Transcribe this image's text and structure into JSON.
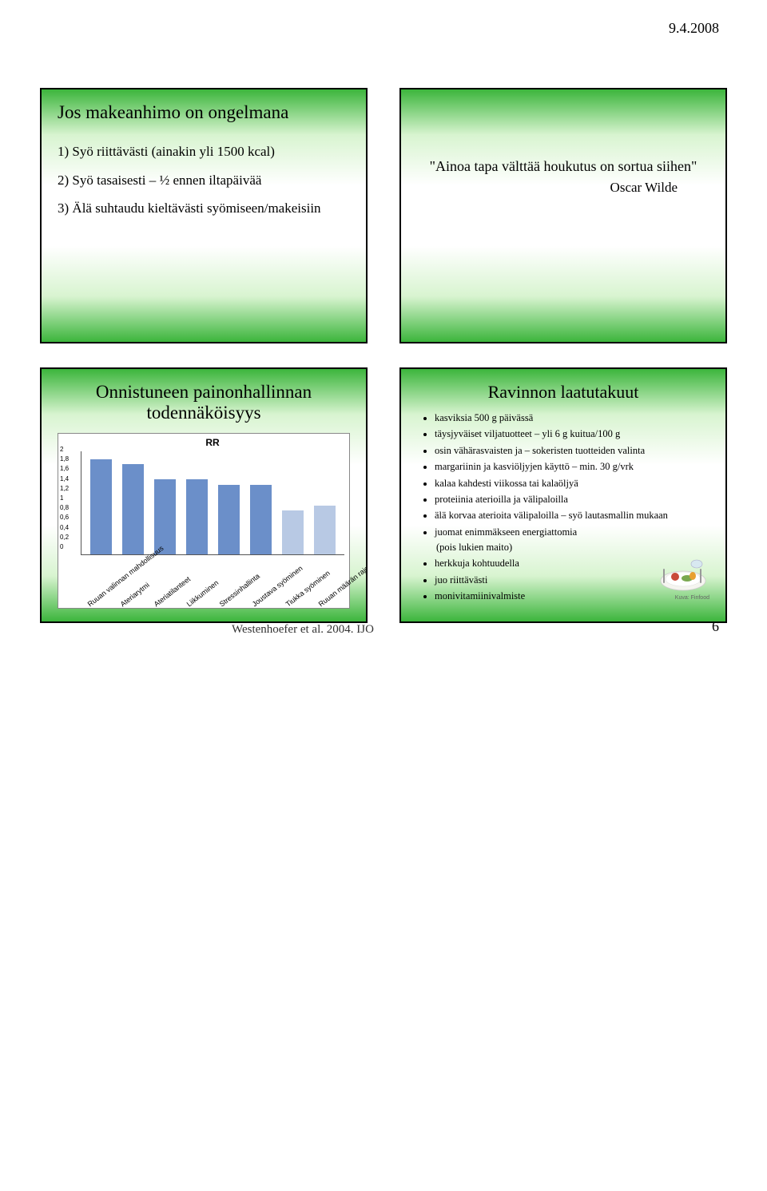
{
  "page": {
    "date": "9.4.2008",
    "number": "6",
    "citation": "Westenhoefer et al. 2004. IJO"
  },
  "slide1": {
    "title": "Jos makeanhimo on ongelmana",
    "items": [
      "1) Syö riittävästi (ainakin yli 1500 kcal)",
      "2) Syö tasaisesti – ½ ennen iltapäivää",
      "3) Älä suhtaudu kieltävästi syömiseen/makeisiin"
    ]
  },
  "slide2": {
    "quote": "\"Ainoa tapa välttää houkutus on sortua siihen\"",
    "attribution": "Oscar Wilde"
  },
  "slide3": {
    "title": "Onnistuneen painonhallinnan todennäköisyys",
    "chart": {
      "type": "bar",
      "chart_label": "RR",
      "categories": [
        "Ruuan valinnan mahdollisuus",
        "Ateriarytmi",
        "Ateriatilanteet",
        "Liikkuminen",
        "Stressinhallinta",
        "Joustava syöminen",
        "Tiukka syöminen",
        "Ruuan määrän rajoittaminen"
      ],
      "values": [
        1.85,
        1.75,
        1.45,
        1.45,
        1.35,
        1.35,
        0.85,
        0.95
      ],
      "bar_colors": [
        "#6b8fc9",
        "#6b8fc9",
        "#6b8fc9",
        "#6b8fc9",
        "#6b8fc9",
        "#6b8fc9",
        "#b8c9e4",
        "#b8c9e4"
      ],
      "ylim": [
        0,
        2
      ],
      "yticks": [
        "2",
        "1,8",
        "1,6",
        "1,4",
        "1,2",
        "1",
        "0,8",
        "0,6",
        "0,4",
        "0,2",
        "0"
      ],
      "background_color": "#ffffff",
      "label_fontsize": 9,
      "label_rotation": -38
    }
  },
  "slide4": {
    "title": "Ravinnon laatutakuut",
    "bullets": [
      "kasviksia 500 g päivässä",
      "täysjyväiset viljatuotteet – yli 6 g kuitua/100 g",
      "osin vähärasvaisten ja – sokeristen tuotteiden valinta",
      "margariinin ja kasviöljyjen käyttö – min. 30 g/vrk",
      "kalaa kahdesti viikossa tai kalaöljyä",
      "proteiinia aterioilla ja välipaloilla",
      "älä korvaa aterioita välipaloilla – syö lautasmallin mukaan",
      "juomat enimmäkseen energiattomia"
    ],
    "sub_bullet": "(pois lukien maito)",
    "bullets_tail": [
      "herkkuja kohtuudella",
      "juo riittävästi",
      "monivitamiinivalmiste"
    ],
    "food_caption": "Kuva: Finfood"
  }
}
